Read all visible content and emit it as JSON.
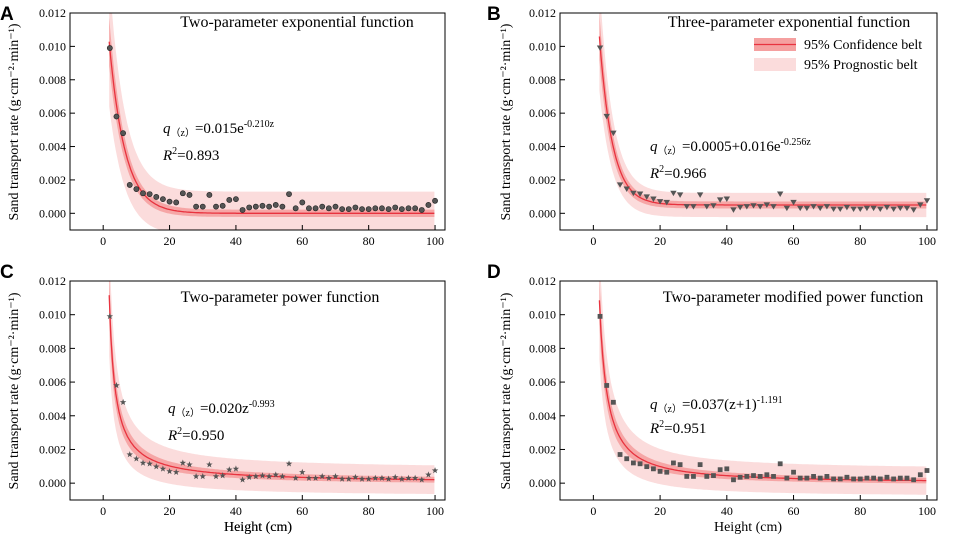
{
  "chart_data": [
    {
      "type": "scatter",
      "panel": "A",
      "title": "Two-parameter exponential function",
      "xlabel": "Height (cm)",
      "ylabel": "Sand transport rate (g·cm⁻²·min⁻¹)",
      "xlim": [
        -10,
        103
      ],
      "ylim": [
        -0.001,
        0.012
      ],
      "xticks": [
        0,
        20,
        40,
        60,
        80,
        100
      ],
      "yticks": [
        0.0,
        0.002,
        0.004,
        0.006,
        0.008,
        0.01,
        0.012
      ],
      "ytick_labels": [
        "0.000",
        "0.002",
        "0.004",
        "0.006",
        "0.008",
        "0.010",
        "0.012"
      ],
      "marker": "circle",
      "model": {
        "kind": "exp2",
        "a": 0.015,
        "b": -0.21
      },
      "equation": {
        "q": "q",
        "sub": "（z）",
        "lhs_rest": "=0.015e",
        "sup": "-0.210z",
        "r2_r": "R",
        "r2_sup": "2",
        "r2_rest": "=0.893"
      },
      "bands": {
        "confidence": 0.00022,
        "prognostic": 0.0013
      },
      "x": [
        2,
        4,
        6,
        8,
        10,
        12,
        14,
        16,
        18,
        20,
        22,
        24,
        26,
        28,
        30,
        32,
        34,
        36,
        38,
        40,
        42,
        44,
        46,
        48,
        50,
        52,
        54,
        56,
        58,
        60,
        62,
        64,
        66,
        68,
        70,
        72,
        74,
        76,
        78,
        80,
        82,
        84,
        86,
        88,
        90,
        92,
        94,
        96,
        98,
        100
      ],
      "y": [
        0.0099,
        0.0058,
        0.0048,
        0.0017,
        0.00145,
        0.0012,
        0.00115,
        0.00098,
        0.00085,
        0.0007,
        0.00065,
        0.0012,
        0.0011,
        0.0004,
        0.0004,
        0.0011,
        0.0004,
        0.00045,
        0.0008,
        0.00085,
        0.0002,
        0.00035,
        0.0004,
        0.00045,
        0.0004,
        0.0005,
        0.0004,
        0.00115,
        0.0003,
        0.00065,
        0.0003,
        0.0003,
        0.0004,
        0.0003,
        0.0004,
        0.00025,
        0.00025,
        0.00035,
        0.00025,
        0.00025,
        0.0003,
        0.0003,
        0.00025,
        0.00035,
        0.00025,
        0.0003,
        0.0003,
        0.0002,
        0.0005,
        0.00075
      ]
    },
    {
      "type": "scatter",
      "panel": "B",
      "title": "Three-parameter exponential function",
      "xlabel": "",
      "ylabel": "Sand transport rate (g·cm⁻²·min⁻¹)",
      "xlim": [
        -10,
        103
      ],
      "ylim": [
        -0.001,
        0.012
      ],
      "xticks": [
        0,
        20,
        40,
        60,
        80,
        100
      ],
      "yticks": [
        0.0,
        0.002,
        0.004,
        0.006,
        0.008,
        0.01,
        0.012
      ],
      "ytick_labels": [
        "0.000",
        "0.002",
        "0.004",
        "0.006",
        "0.008",
        "0.010",
        "0.012"
      ],
      "marker": "triangle-down",
      "model": {
        "kind": "exp3",
        "c": 0.0005,
        "a": 0.016,
        "b": -0.256
      },
      "equation": {
        "q": "q",
        "sub": "（z）",
        "lhs_rest": "=0.0005+0.016e",
        "sup": "-0.256z",
        "r2_r": "R",
        "r2_sup": "2",
        "r2_rest": "=0.966"
      },
      "bands": {
        "confidence": 0.00015,
        "prognostic": 0.0006
      },
      "legend": {
        "position": "top-right",
        "entries": [
          {
            "label": "95% Confidence belt",
            "color": "#f5a0a0"
          },
          {
            "label": "95% Prognostic belt",
            "color": "#fbdcdc"
          }
        ]
      },
      "x": [
        2,
        4,
        6,
        8,
        10,
        12,
        14,
        16,
        18,
        20,
        22,
        24,
        26,
        28,
        30,
        32,
        34,
        36,
        38,
        40,
        42,
        44,
        46,
        48,
        50,
        52,
        54,
        56,
        58,
        60,
        62,
        64,
        66,
        68,
        70,
        72,
        74,
        76,
        78,
        80,
        82,
        84,
        86,
        88,
        90,
        92,
        94,
        96,
        98,
        100
      ],
      "y": [
        0.0099,
        0.0058,
        0.0048,
        0.0017,
        0.00145,
        0.0012,
        0.00115,
        0.00098,
        0.00085,
        0.0007,
        0.00065,
        0.0012,
        0.0011,
        0.0004,
        0.0004,
        0.0011,
        0.0004,
        0.00045,
        0.0008,
        0.00085,
        0.0002,
        0.00035,
        0.0004,
        0.00045,
        0.0004,
        0.0005,
        0.0004,
        0.00115,
        0.0003,
        0.00065,
        0.0003,
        0.0003,
        0.0004,
        0.0003,
        0.0004,
        0.00025,
        0.00025,
        0.00035,
        0.00025,
        0.00025,
        0.0003,
        0.0003,
        0.00025,
        0.00035,
        0.00025,
        0.0003,
        0.0003,
        0.0002,
        0.0005,
        0.00075
      ]
    },
    {
      "type": "scatter",
      "panel": "C",
      "title": "Two-parameter power function",
      "xlabel": "Height (cm)",
      "ylabel": "Sand transport rate (g·cm⁻²·min⁻¹)",
      "xlim": [
        -10,
        103
      ],
      "ylim": [
        -0.001,
        0.012
      ],
      "xticks": [
        0,
        20,
        40,
        60,
        80,
        100
      ],
      "yticks": [
        0.0,
        0.002,
        0.004,
        0.006,
        0.008,
        0.01,
        0.012
      ],
      "ytick_labels": [
        "0.000",
        "0.002",
        "0.004",
        "0.006",
        "0.008",
        "0.010",
        "0.012"
      ],
      "marker": "star",
      "model": {
        "kind": "power",
        "a": 0.02,
        "b": -0.993
      },
      "equation": {
        "q": "q",
        "sub": "（z）",
        "lhs_rest": "=0.020z",
        "sup": "-0.993",
        "r2_r": "R",
        "r2_sup": "2",
        "r2_rest": "=0.950"
      },
      "bands": {
        "confidence": 0.00015,
        "prognostic": 0.0008
      },
      "x": [
        2,
        4,
        6,
        8,
        10,
        12,
        14,
        16,
        18,
        20,
        22,
        24,
        26,
        28,
        30,
        32,
        34,
        36,
        38,
        40,
        42,
        44,
        46,
        48,
        50,
        52,
        54,
        56,
        58,
        60,
        62,
        64,
        66,
        68,
        70,
        72,
        74,
        76,
        78,
        80,
        82,
        84,
        86,
        88,
        90,
        92,
        94,
        96,
        98,
        100
      ],
      "y": [
        0.0099,
        0.0058,
        0.0048,
        0.0017,
        0.00145,
        0.0012,
        0.00115,
        0.00098,
        0.00085,
        0.0007,
        0.00065,
        0.0012,
        0.0011,
        0.0004,
        0.0004,
        0.0011,
        0.0004,
        0.00045,
        0.0008,
        0.00085,
        0.0002,
        0.00035,
        0.0004,
        0.00045,
        0.0004,
        0.0005,
        0.0004,
        0.00115,
        0.0003,
        0.00065,
        0.0003,
        0.0003,
        0.0004,
        0.0003,
        0.0004,
        0.00025,
        0.00025,
        0.00035,
        0.00025,
        0.00025,
        0.0003,
        0.0003,
        0.00025,
        0.00035,
        0.00025,
        0.0003,
        0.0003,
        0.0002,
        0.0005,
        0.00075
      ]
    },
    {
      "type": "scatter",
      "panel": "D",
      "title": "Two-parameter modified power function",
      "xlabel": "Height (cm)",
      "ylabel": "Sand transport rate (g·cm⁻²·min⁻¹)",
      "xlim": [
        -10,
        103
      ],
      "ylim": [
        -0.001,
        0.012
      ],
      "xticks": [
        0,
        20,
        40,
        60,
        80,
        100
      ],
      "yticks": [
        0.0,
        0.002,
        0.004,
        0.006,
        0.008,
        0.01,
        0.012
      ],
      "ytick_labels": [
        "0.000",
        "0.002",
        "0.004",
        "0.006",
        "0.008",
        "0.010",
        "0.012"
      ],
      "marker": "square",
      "model": {
        "kind": "modpower",
        "a": 0.037,
        "b": -1.191
      },
      "equation": {
        "q": "q",
        "sub": "（z）",
        "lhs_rest": "=0.037(z+1)",
        "sup": "-1.191",
        "r2_r": "R",
        "r2_sup": "2",
        "r2_rest": "=0.951"
      },
      "bands": {
        "confidence": 0.00015,
        "prognostic": 0.0008
      },
      "x": [
        2,
        4,
        6,
        8,
        10,
        12,
        14,
        16,
        18,
        20,
        22,
        24,
        26,
        28,
        30,
        32,
        34,
        36,
        38,
        40,
        42,
        44,
        46,
        48,
        50,
        52,
        54,
        56,
        58,
        60,
        62,
        64,
        66,
        68,
        70,
        72,
        74,
        76,
        78,
        80,
        82,
        84,
        86,
        88,
        90,
        92,
        94,
        96,
        98,
        100
      ],
      "y": [
        0.0099,
        0.0058,
        0.0048,
        0.0017,
        0.00145,
        0.0012,
        0.00115,
        0.00098,
        0.00085,
        0.0007,
        0.00065,
        0.0012,
        0.0011,
        0.0004,
        0.0004,
        0.0011,
        0.0004,
        0.00045,
        0.0008,
        0.00085,
        0.0002,
        0.00035,
        0.0004,
        0.00045,
        0.0004,
        0.0005,
        0.0004,
        0.00115,
        0.0003,
        0.00065,
        0.0003,
        0.0003,
        0.0004,
        0.0003,
        0.0004,
        0.00025,
        0.00025,
        0.00035,
        0.00025,
        0.00025,
        0.0003,
        0.0003,
        0.00025,
        0.00035,
        0.00025,
        0.0003,
        0.0003,
        0.0002,
        0.0005,
        0.00075
      ]
    }
  ],
  "colors": {
    "fit_line": "#e8333f",
    "confidence_band": "#f5a0a0",
    "prognostic_band": "#fbdcdc",
    "marker_fill": "#555555"
  }
}
